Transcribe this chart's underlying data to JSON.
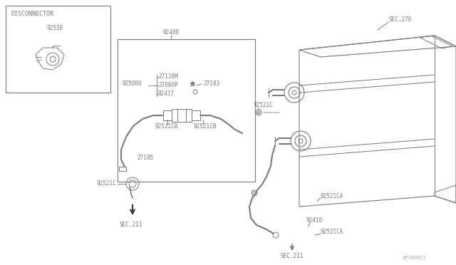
{
  "bg_color": "#ffffff",
  "line_color": "#7a7a7a",
  "text_color": "#7a7a7a",
  "watermark": "JP7800C5",
  "labels": {
    "disconnector": "DISCONNECTOR",
    "p92530": "92530",
    "p92400": "92400",
    "p27116M": "27116M",
    "p27060P": "27060P",
    "p92417": "92417",
    "p27183": "27183",
    "p27185": "27185",
    "p92521CB_1": "92521CB",
    "p92521CB_2": "92521CB",
    "p92500U": "92500U",
    "p92521C_1": "92521C",
    "p92521C_2": "92521C",
    "p92521CA_1": "92521CA",
    "p92521CA_2": "92521CA",
    "p92410": "92410",
    "sec270": "SEC.270",
    "sec211_1": "SEC.211",
    "sec211_2": "SEC.211"
  }
}
